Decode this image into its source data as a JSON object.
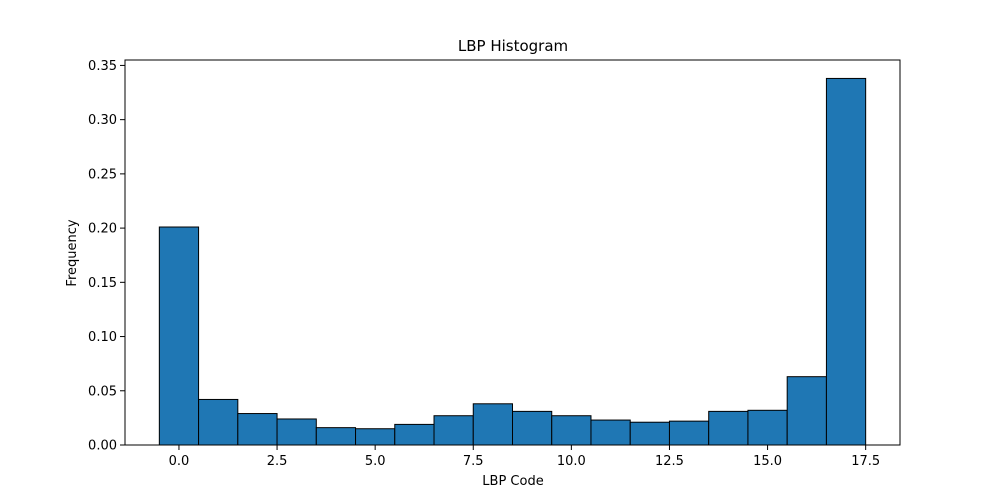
{
  "chart_data": {
    "type": "bar",
    "title": "LBP Histogram",
    "xlabel": "LBP Code",
    "ylabel": "Frequency",
    "bin_width": 1,
    "x": [
      0,
      1,
      2,
      3,
      4,
      5,
      6,
      7,
      8,
      9,
      10,
      11,
      12,
      13,
      14,
      15,
      16,
      17
    ],
    "values": [
      0.201,
      0.042,
      0.029,
      0.024,
      0.016,
      0.015,
      0.019,
      0.027,
      0.038,
      0.031,
      0.027,
      0.023,
      0.021,
      0.022,
      0.031,
      0.032,
      0.063,
      0.338
    ],
    "xlim": [
      -1.375,
      18.375
    ],
    "ylim": [
      0,
      0.355
    ],
    "xticks": [
      0.0,
      2.5,
      5.0,
      7.5,
      10.0,
      12.5,
      15.0,
      17.5
    ],
    "xtick_labels": [
      "0.0",
      "2.5",
      "5.0",
      "7.5",
      "10.0",
      "12.5",
      "15.0",
      "17.5"
    ],
    "yticks": [
      0.0,
      0.05,
      0.1,
      0.15,
      0.2,
      0.25,
      0.3,
      0.35
    ],
    "ytick_labels": [
      "0.00",
      "0.05",
      "0.10",
      "0.15",
      "0.20",
      "0.25",
      "0.30",
      "0.35"
    ],
    "grid": false,
    "colors": {
      "bar_fill": "#1f77b4",
      "bar_edge": "#000000"
    }
  }
}
